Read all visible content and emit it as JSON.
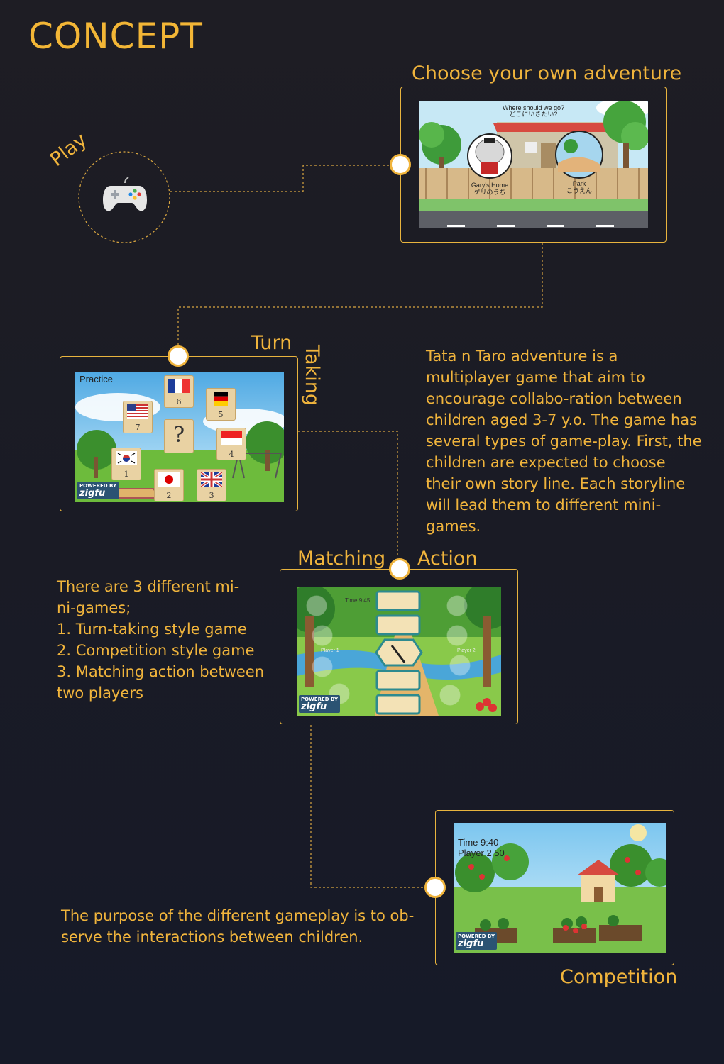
{
  "header": {
    "title": "CONCEPT"
  },
  "play": {
    "label": "Play",
    "icon": "gamepad-icon"
  },
  "adventure": {
    "label": "Choose your own adventure",
    "question_en": "Where should we go?",
    "question_jp": "どこにいきたい?",
    "choice1_en": "Gary's Home",
    "choice1_jp": "ゲリのうち",
    "choice2_en": "Park",
    "choice2_jp": "こうえん"
  },
  "turn_taking": {
    "label_turn": "Turn",
    "label_taking": "Taking",
    "screen_title": "Practice",
    "question_mark": "?",
    "cards": [
      {
        "num": "6",
        "flag": "france"
      },
      {
        "num": "5",
        "flag": "germany"
      },
      {
        "num": "7",
        "flag": "usa"
      },
      {
        "num": "4",
        "flag": "indonesia"
      },
      {
        "num": "1",
        "flag": "korea"
      },
      {
        "num": "2",
        "flag": "japan"
      },
      {
        "num": "3",
        "flag": "uk"
      }
    ],
    "powered_by": "POWERED BY",
    "brand": "zigfu"
  },
  "description": {
    "text": "Tata n Taro adventure is a multiplayer game that aim to encourage collabo-ration between children aged 3-7 y.o. The game has several types of game-play. First, the children are expected to choose their own story line. Each storyline will lead them to different mini-games."
  },
  "matching": {
    "label_left": "Matching",
    "label_right": "Action",
    "time": "Time 9:45",
    "player1": "Player 1",
    "player2": "Player 2",
    "powered_by": "POWERED BY",
    "brand": "zigfu"
  },
  "minigames": {
    "lines": [
      "There are 3 different mi-",
      "ni-games;",
      "1. Turn-taking style game",
      "2. Competition style game",
      "3. Matching action between",
      "two players"
    ]
  },
  "competition": {
    "label": "Competition",
    "time": "Time 9:40",
    "score": "Player 2 50",
    "powered_by": "POWERED BY",
    "brand": "zigfu"
  },
  "purpose": {
    "lines": [
      "The purpose of the different gameplay is to ob-",
      "serve the interactions between children."
    ]
  },
  "colors": {
    "accent": "#f0b43c",
    "background": "#1c1c26",
    "node": "#ffffff"
  }
}
